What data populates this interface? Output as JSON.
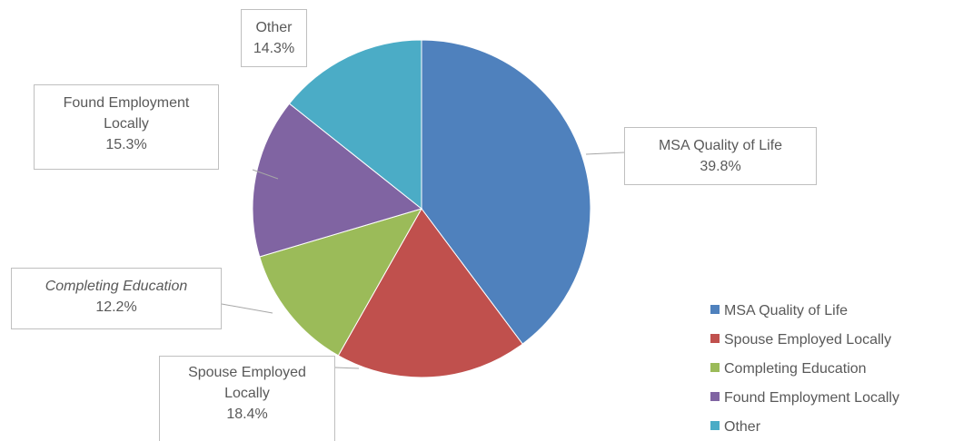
{
  "chart_data": {
    "type": "pie",
    "categories": [
      "MSA Quality of Life",
      "Spouse Employed Locally",
      "Completing Education",
      "Found Employment Locally",
      "Other"
    ],
    "values": [
      39.8,
      18.4,
      12.2,
      15.3,
      14.3
    ],
    "value_labels": [
      "39.8%",
      "18.4%",
      "12.2%",
      "15.3%",
      "14.3%"
    ],
    "colors": [
      "#4f81bd",
      "#c0504d",
      "#9bbb59",
      "#8064a2",
      "#4bacc6"
    ],
    "legend": "right"
  }
}
